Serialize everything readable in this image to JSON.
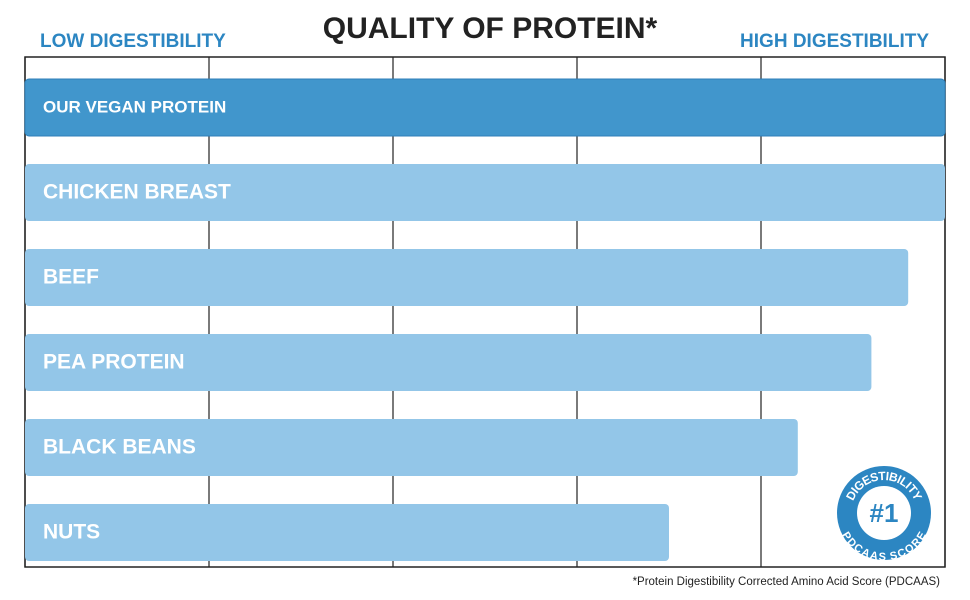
{
  "chart_data": {
    "type": "bar",
    "orientation": "horizontal",
    "title": "QUALITY OF PROTEIN*",
    "left_label": "LOW DIGESTIBILITY",
    "right_label": "HIGH DIGESTIBILITY",
    "categories": [
      "OUR VEGAN PROTEIN",
      "CHICKEN BREAST",
      "BEEF",
      "PEA PROTEIN",
      "BLACK BEANS",
      "NUTS"
    ],
    "values": [
      1.0,
      1.0,
      0.96,
      0.92,
      0.84,
      0.7
    ],
    "colors": [
      "#4196cc",
      "#93c6e8",
      "#93c6e8",
      "#93c6e8",
      "#93c6e8",
      "#93c6e8"
    ],
    "xlim": [
      0,
      1
    ],
    "xticks": [
      0,
      0.2,
      0.4,
      0.6,
      0.8,
      1
    ],
    "grid": true,
    "footnote": "*Protein Digestibility Corrected Amino Acid Score (PDCAAS)",
    "badge": {
      "top": "DIGESTIBILITY",
      "center": "#1",
      "bottom": "PDCAAS SCORE"
    }
  }
}
